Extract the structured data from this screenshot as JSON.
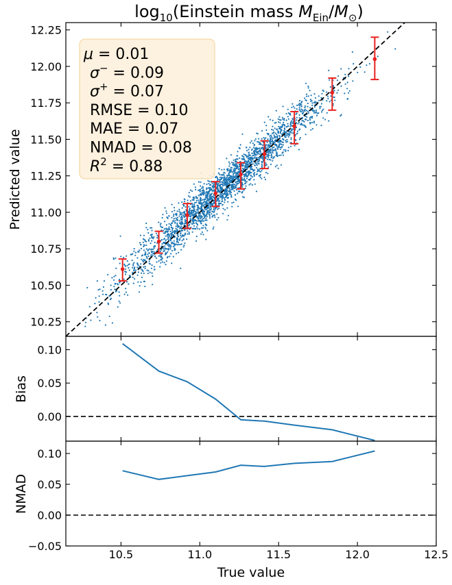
{
  "chart_data": [
    {
      "type": "scatter",
      "title": "log₁₀(Einstein mass M_Ein/M_☉)",
      "title_parts": {
        "pre": "log",
        "sub10": "10",
        "mid": "(Einstein mass ",
        "M1": "M",
        "sub_ein": "Ein",
        "slash": "/",
        "M2": "M",
        "sub_sun": "⊙",
        "post": ")"
      },
      "xlabel": "",
      "ylabel": "Predicted value",
      "xlim": [
        10.15,
        12.5
      ],
      "ylim": [
        10.15,
        12.3
      ],
      "yticks": [
        {
          "v": 10.25,
          "label": "10.25"
        },
        {
          "v": 10.5,
          "label": "10.50"
        },
        {
          "v": 10.75,
          "label": "10.75"
        },
        {
          "v": 11.0,
          "label": "11.00"
        },
        {
          "v": 11.25,
          "label": "11.25"
        },
        {
          "v": 11.5,
          "label": "11.50"
        },
        {
          "v": 11.75,
          "label": "11.75"
        },
        {
          "v": 12.0,
          "label": "12.00"
        },
        {
          "v": 12.25,
          "label": "12.25"
        }
      ],
      "scatter_color": "#1f77b4",
      "errorbar_color": "#e8211d",
      "reference_line": "y = x (dashed)",
      "binned_points": [
        {
          "x": 10.51,
          "y": 10.61,
          "lo": 10.53,
          "hi": 10.68
        },
        {
          "x": 10.74,
          "y": 10.8,
          "lo": 10.72,
          "hi": 10.87
        },
        {
          "x": 10.92,
          "y": 10.98,
          "lo": 10.89,
          "hi": 11.06
        },
        {
          "x": 11.1,
          "y": 11.13,
          "lo": 11.04,
          "hi": 11.21
        },
        {
          "x": 11.26,
          "y": 11.26,
          "lo": 11.16,
          "hi": 11.34
        },
        {
          "x": 11.41,
          "y": 11.4,
          "lo": 11.3,
          "hi": 11.49
        },
        {
          "x": 11.6,
          "y": 11.59,
          "lo": 11.47,
          "hi": 11.69
        },
        {
          "x": 11.84,
          "y": 11.82,
          "lo": 11.7,
          "hi": 11.92
        },
        {
          "x": 12.11,
          "y": 12.05,
          "lo": 11.91,
          "hi": 12.2
        }
      ],
      "stats": [
        {
          "sym": "μ",
          "sup": "",
          "eq": " = 0.01"
        },
        {
          "sym": "σ",
          "sup": "−",
          "eq": " = 0.09"
        },
        {
          "sym": "σ",
          "sup": "+",
          "eq": " = 0.07"
        },
        {
          "sym": "RMSE",
          "sup": "",
          "eq": " = 0.10"
        },
        {
          "sym": "MAE",
          "sup": "",
          "eq": " = 0.07"
        },
        {
          "sym": "NMAD",
          "sup": "",
          "eq": " = 0.08"
        },
        {
          "sym": "R",
          "sup": "2",
          "eq": " = 0.88"
        }
      ]
    },
    {
      "type": "line",
      "ylabel": "Bias",
      "xlim": [
        10.15,
        12.5
      ],
      "ylim": [
        -0.037,
        0.12
      ],
      "yticks": [
        {
          "v": 0.0,
          "label": "0.00"
        },
        {
          "v": 0.05,
          "label": "0.05"
        },
        {
          "v": 0.1,
          "label": "0.10"
        }
      ],
      "x": [
        10.51,
        10.74,
        10.92,
        11.1,
        11.26,
        11.41,
        11.6,
        11.84,
        12.11
      ],
      "values": [
        0.109,
        0.068,
        0.052,
        0.026,
        -0.005,
        -0.007,
        -0.013,
        -0.02,
        -0.036
      ],
      "reference_y": 0.0
    },
    {
      "type": "line",
      "ylabel": "NMAD",
      "xlabel": "True value",
      "xlim": [
        10.15,
        12.5
      ],
      "ylim": [
        -0.05,
        0.12
      ],
      "yticks": [
        {
          "v": -0.05,
          "label": "−0.05"
        },
        {
          "v": 0.0,
          "label": "0.00"
        },
        {
          "v": 0.05,
          "label": "0.05"
        },
        {
          "v": 0.1,
          "label": "0.10"
        }
      ],
      "xticks": [
        {
          "v": 10.5,
          "label": "10.5"
        },
        {
          "v": 11.0,
          "label": "11.0"
        },
        {
          "v": 11.5,
          "label": "11.5"
        },
        {
          "v": 12.0,
          "label": "12.0"
        },
        {
          "v": 12.5,
          "label": "12.5"
        }
      ],
      "x": [
        10.51,
        10.74,
        10.92,
        11.1,
        11.26,
        11.41,
        11.6,
        11.84,
        12.11
      ],
      "values": [
        0.072,
        0.058,
        0.064,
        0.07,
        0.081,
        0.079,
        0.084,
        0.087,
        0.104
      ],
      "reference_y": 0.0
    }
  ]
}
